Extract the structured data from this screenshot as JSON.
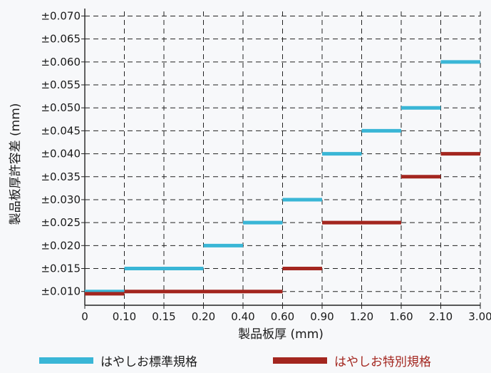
{
  "chart_data": {
    "type": "line",
    "title": "",
    "xlabel": "製品板厚 (mm)",
    "ylabel": "製品板厚許容差 (mm)",
    "x_ticks": [
      "0",
      "0.10",
      "0.15",
      "0.20",
      "0.40",
      "0.60",
      "0.90",
      "1.20",
      "1.60",
      "2.10",
      "3.00"
    ],
    "y_ticks": [
      "±0.010",
      "±0.015",
      "±0.020",
      "±0.025",
      "±0.030",
      "±0.035",
      "±0.040",
      "±0.045",
      "±0.050",
      "±0.055",
      "±0.060",
      "±0.065",
      "±0.070"
    ],
    "ylim": [
      0.007,
      0.071
    ],
    "grid": true,
    "legend_position": "bottom",
    "series": [
      {
        "name": "はやしお標準規格",
        "color": "#3ab6d6",
        "segments": [
          {
            "x_from": "0",
            "x_to": "0.10",
            "y": 0.01
          },
          {
            "x_from": "0.10",
            "x_to": "0.20",
            "y": 0.015
          },
          {
            "x_from": "0.20",
            "x_to": "0.40",
            "y": 0.02
          },
          {
            "x_from": "0.40",
            "x_to": "0.60",
            "y": 0.025
          },
          {
            "x_from": "0.60",
            "x_to": "0.90",
            "y": 0.03
          },
          {
            "x_from": "0.90",
            "x_to": "1.20",
            "y": 0.04
          },
          {
            "x_from": "1.20",
            "x_to": "1.60",
            "y": 0.045
          },
          {
            "x_from": "1.60",
            "x_to": "2.10",
            "y": 0.05
          },
          {
            "x_from": "2.10",
            "x_to": "3.00",
            "y": 0.06
          }
        ]
      },
      {
        "name": "はやしお特別規格",
        "color": "#a3261f",
        "segments": [
          {
            "x_from": "0",
            "x_to": "0.10",
            "y": 0.0095
          },
          {
            "x_from": "0.10",
            "x_to": "0.60",
            "y": 0.01
          },
          {
            "x_from": "0.60",
            "x_to": "0.90",
            "y": 0.015
          },
          {
            "x_from": "0.90",
            "x_to": "1.60",
            "y": 0.025
          },
          {
            "x_from": "1.60",
            "x_to": "2.10",
            "y": 0.035
          },
          {
            "x_from": "2.10",
            "x_to": "3.00",
            "y": 0.04
          }
        ]
      }
    ]
  }
}
